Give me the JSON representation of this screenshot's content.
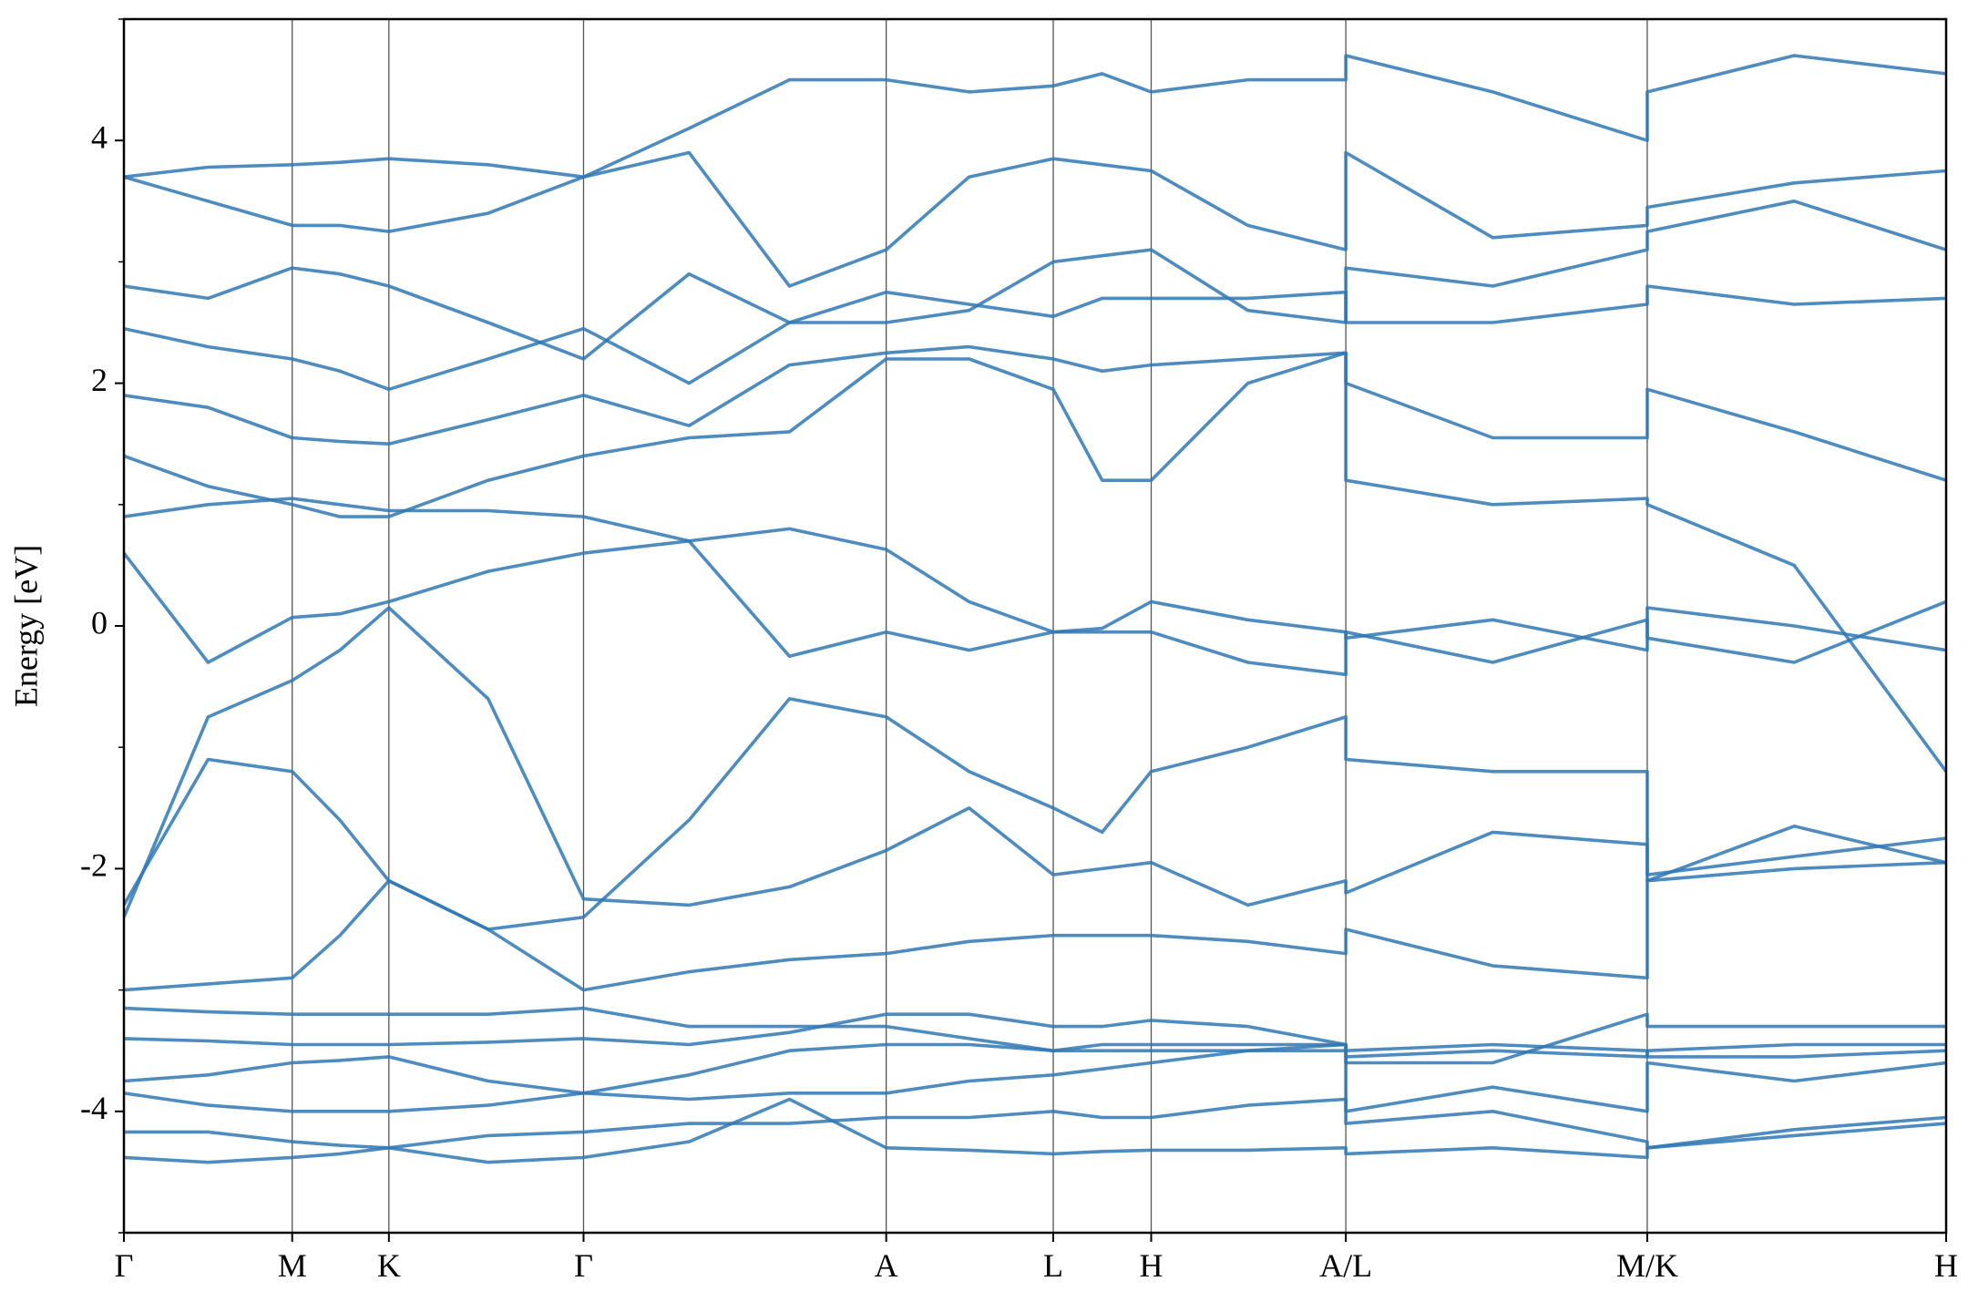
{
  "chart_data": {
    "type": "line",
    "ylabel": "Energy [eV]",
    "color": "#2f78b5",
    "xlim": [
      0,
      14.51
    ],
    "xticks": [
      {
        "value": 0,
        "label": "Γ"
      },
      {
        "value": 1.34,
        "label": "M"
      },
      {
        "value": 2.11,
        "label": "K"
      },
      {
        "value": 3.66,
        "label": "Γ"
      },
      {
        "value": 6.07,
        "label": "A"
      },
      {
        "value": 7.4,
        "label": "L"
      },
      {
        "value": 8.18,
        "label": "H"
      },
      {
        "value": 9.73,
        "label": "A/L"
      },
      {
        "value": 12.13,
        "label": "M/K"
      },
      {
        "value": 14.51,
        "label": "H"
      }
    ],
    "ylim": [
      -5,
      5
    ],
    "yticks": [
      -4,
      -2,
      0,
      2,
      4
    ],
    "yminorticks": [
      -5,
      -3,
      -1,
      1,
      3,
      5
    ],
    "x": [
      0,
      0.67,
      1.34,
      1.72,
      2.11,
      2.9,
      3.66,
      4.5,
      5.3,
      6.07,
      6.73,
      7.4,
      7.79,
      8.18,
      8.95,
      9.73,
      9.73,
      10.9,
      12.13,
      12.13,
      13.3,
      14.51
    ],
    "series": [
      {
        "values": [
          -4.38,
          -4.42,
          -4.38,
          -4.35,
          -4.3,
          -4.42,
          -4.38,
          -4.25,
          -3.9,
          -4.3,
          -4.32,
          -4.35,
          -4.33,
          -4.32,
          -4.32,
          -4.3,
          -4.35,
          -4.3,
          -4.38,
          -4.3,
          -4.2,
          -4.1
        ]
      },
      {
        "values": [
          -4.17,
          -4.17,
          -4.25,
          -4.28,
          -4.3,
          -4.2,
          -4.17,
          -4.1,
          -4.1,
          -4.05,
          -4.05,
          -4.0,
          -4.05,
          -4.05,
          -3.95,
          -3.9,
          -4.1,
          -4.0,
          -4.25,
          -4.3,
          -4.15,
          -4.05
        ]
      },
      {
        "values": [
          -3.85,
          -3.95,
          -4.0,
          -4.0,
          -4.0,
          -3.95,
          -3.85,
          -3.9,
          -3.85,
          -3.85,
          -3.75,
          -3.7,
          -3.65,
          -3.6,
          -3.5,
          -3.45,
          -4.0,
          -3.8,
          -4.0,
          -3.6,
          -3.75,
          -3.6
        ]
      },
      {
        "values": [
          -3.75,
          -3.7,
          -3.6,
          -3.58,
          -3.55,
          -3.75,
          -3.85,
          -3.7,
          -3.5,
          -3.45,
          -3.45,
          -3.5,
          -3.45,
          -3.45,
          -3.45,
          -3.45,
          -3.55,
          -3.5,
          -3.55,
          -3.5,
          -3.45,
          -3.45
        ]
      },
      {
        "values": [
          -3.4,
          -3.42,
          -3.45,
          -3.45,
          -3.45,
          -3.43,
          -3.4,
          -3.45,
          -3.35,
          -3.2,
          -3.2,
          -3.3,
          -3.3,
          -3.25,
          -3.3,
          -3.45,
          -3.5,
          -3.45,
          -3.5,
          -3.55,
          -3.55,
          -3.5
        ]
      },
      {
        "values": [
          -3.15,
          -3.18,
          -3.2,
          -3.2,
          -3.2,
          -3.2,
          -3.15,
          -3.3,
          -3.3,
          -3.3,
          -3.4,
          -3.5,
          -3.5,
          -3.5,
          -3.5,
          -3.5,
          -3.6,
          -3.6,
          -3.2,
          -3.3,
          -3.3,
          -3.3
        ]
      },
      {
        "values": [
          -3.0,
          -2.95,
          -2.9,
          -2.55,
          -2.1,
          -2.5,
          -3.0,
          -2.85,
          -2.75,
          -2.7,
          -2.6,
          -2.55,
          -2.55,
          -2.55,
          -2.6,
          -2.7,
          -2.5,
          -2.8,
          -2.9,
          -2.1,
          -2.0,
          -1.95
        ]
      },
      {
        "values": [
          -2.3,
          -1.1,
          -1.2,
          -1.6,
          -2.1,
          -2.5,
          -2.4,
          -1.6,
          -0.6,
          -0.75,
          -1.2,
          -1.5,
          -1.7,
          -1.2,
          -1.0,
          -0.75,
          -1.1,
          -1.2,
          -1.2,
          -2.05,
          -1.9,
          -1.75
        ]
      },
      {
        "values": [
          -2.4,
          -0.75,
          -0.45,
          -0.2,
          0.15,
          -0.6,
          -2.25,
          -2.3,
          -2.15,
          -1.85,
          -1.5,
          -2.05,
          -2.0,
          -1.95,
          -2.3,
          -2.1,
          -2.2,
          -1.7,
          -1.8,
          -2.1,
          -1.65,
          -1.95
        ]
      },
      {
        "values": [
          0.6,
          -0.3,
          0.07,
          0.1,
          0.2,
          0.45,
          0.6,
          0.7,
          -0.25,
          -0.05,
          -0.2,
          -0.05,
          -0.02,
          0.2,
          0.05,
          -0.05,
          -0.1,
          0.05,
          -0.2,
          0.15,
          0.0,
          -0.2
        ]
      },
      {
        "values": [
          0.9,
          1.0,
          1.05,
          1.0,
          0.95,
          0.95,
          0.9,
          0.7,
          0.8,
          0.63,
          0.2,
          -0.05,
          -0.05,
          -0.05,
          -0.3,
          -0.4,
          -0.05,
          -0.3,
          0.05,
          -0.1,
          -0.3,
          0.2
        ]
      },
      {
        "values": [
          1.4,
          1.15,
          1.0,
          0.9,
          0.9,
          1.2,
          1.4,
          1.55,
          1.6,
          2.2,
          2.2,
          1.95,
          1.2,
          1.2,
          2.0,
          2.25,
          1.2,
          1.0,
          1.05,
          1.0,
          0.5,
          -1.2
        ]
      },
      {
        "values": [
          1.9,
          1.8,
          1.55,
          1.52,
          1.5,
          1.7,
          1.9,
          1.65,
          2.15,
          2.25,
          2.3,
          2.2,
          2.1,
          2.15,
          2.2,
          2.25,
          2.0,
          1.55,
          1.55,
          1.95,
          1.6,
          1.2
        ]
      },
      {
        "values": [
          2.45,
          2.3,
          2.2,
          2.1,
          1.95,
          2.2,
          2.45,
          2.0,
          2.5,
          2.75,
          2.65,
          2.55,
          2.7,
          2.7,
          2.7,
          2.75,
          2.5,
          2.5,
          2.65,
          2.8,
          2.65,
          2.7
        ]
      },
      {
        "values": [
          2.8,
          2.7,
          2.95,
          2.9,
          2.8,
          2.5,
          2.2,
          2.9,
          2.5,
          2.5,
          2.6,
          3.0,
          3.05,
          3.1,
          2.6,
          2.5,
          2.95,
          2.8,
          3.1,
          3.25,
          3.5,
          3.1
        ]
      },
      {
        "values": [
          3.7,
          3.5,
          3.3,
          3.3,
          3.25,
          3.4,
          3.7,
          3.9,
          2.8,
          3.1,
          3.7,
          3.85,
          3.8,
          3.75,
          3.3,
          3.1,
          3.9,
          3.2,
          3.3,
          3.45,
          3.65,
          3.75
        ]
      },
      {
        "values": [
          3.7,
          3.78,
          3.8,
          3.82,
          3.85,
          3.8,
          3.7,
          4.1,
          4.5,
          4.5,
          4.4,
          4.45,
          4.55,
          4.4,
          4.5,
          4.5,
          4.7,
          4.4,
          4.0,
          4.4,
          4.7,
          4.55
        ]
      }
    ]
  }
}
